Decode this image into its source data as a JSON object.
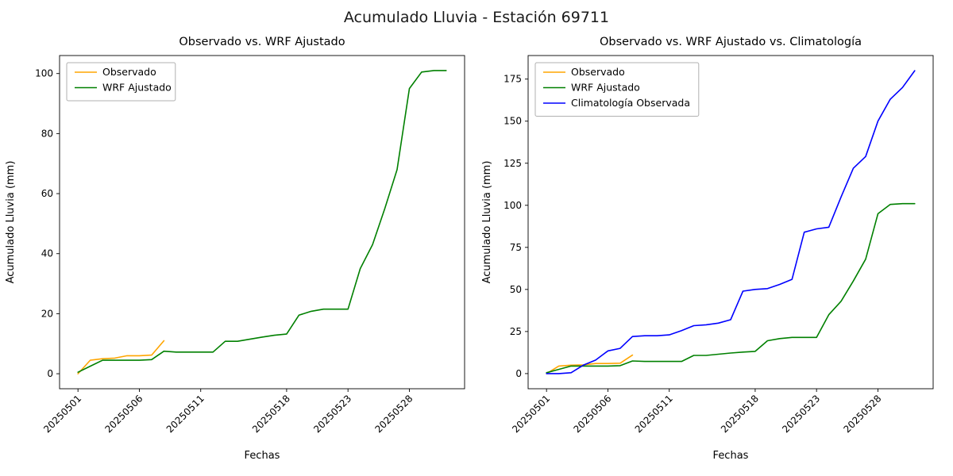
{
  "figure": {
    "title": "Acumulado Lluvia - Estación 69711",
    "background": "#ffffff"
  },
  "chart_data": [
    {
      "type": "line",
      "title": "Observado vs. WRF Ajustado",
      "xlabel": "Fechas",
      "ylabel": "Acumulado Lluvia (mm)",
      "grid": false,
      "legend_position": "upper left",
      "xlim": [
        -1.5,
        31.5
      ],
      "ylim": [
        -5,
        106
      ],
      "yticks": [
        0,
        20,
        40,
        60,
        80,
        100
      ],
      "xticks": [
        {
          "index": 0,
          "label": "20250501"
        },
        {
          "index": 5,
          "label": "20250506"
        },
        {
          "index": 10,
          "label": "20250511"
        },
        {
          "index": 17,
          "label": "20250518"
        },
        {
          "index": 22,
          "label": "20250523"
        },
        {
          "index": 27,
          "label": "20250528"
        }
      ],
      "x": [
        "20250501",
        "20250502",
        "20250503",
        "20250504",
        "20250505",
        "20250506",
        "20250507",
        "20250508",
        "20250509",
        "20250510",
        "20250511",
        "20250512",
        "20250513",
        "20250514",
        "20250515",
        "20250516",
        "20250517",
        "20250518",
        "20250519",
        "20250520",
        "20250521",
        "20250522",
        "20250523",
        "20250524",
        "20250525",
        "20250526",
        "20250527",
        "20250528",
        "20250529",
        "20250530",
        "20250531"
      ],
      "series": [
        {
          "name": "Observado",
          "color": "#ffa500",
          "values": [
            0,
            4.5,
            5,
            5.2,
            6,
            6,
            6.2,
            11
          ]
        },
        {
          "name": "WRF Ajustado",
          "color": "#008000",
          "values": [
            0.5,
            2.5,
            4.5,
            4.5,
            4.5,
            4.5,
            4.7,
            7.5,
            7.2,
            7.2,
            7.2,
            7.2,
            10.8,
            10.8,
            11.5,
            12.2,
            12.8,
            13.2,
            19.5,
            20.8,
            21.5,
            21.5,
            21.5,
            35,
            43,
            55,
            68,
            95,
            100.5,
            101,
            101
          ]
        }
      ]
    },
    {
      "type": "line",
      "title": "Observado vs. WRF Ajustado vs. Climatología",
      "xlabel": "Fechas",
      "ylabel": "Acumulado Lluvia (mm)",
      "grid": false,
      "legend_position": "upper left",
      "xlim": [
        -1.5,
        31.5
      ],
      "ylim": [
        -9,
        189
      ],
      "yticks": [
        0,
        25,
        50,
        75,
        100,
        125,
        150,
        175
      ],
      "xticks": [
        {
          "index": 0,
          "label": "20250501"
        },
        {
          "index": 5,
          "label": "20250506"
        },
        {
          "index": 10,
          "label": "20250511"
        },
        {
          "index": 17,
          "label": "20250518"
        },
        {
          "index": 22,
          "label": "20250523"
        },
        {
          "index": 27,
          "label": "20250528"
        }
      ],
      "x": [
        "20250501",
        "20250502",
        "20250503",
        "20250504",
        "20250505",
        "20250506",
        "20250507",
        "20250508",
        "20250509",
        "20250510",
        "20250511",
        "20250512",
        "20250513",
        "20250514",
        "20250515",
        "20250516",
        "20250517",
        "20250518",
        "20250519",
        "20250520",
        "20250521",
        "20250522",
        "20250523",
        "20250524",
        "20250525",
        "20250526",
        "20250527",
        "20250528",
        "20250529",
        "20250530",
        "20250531"
      ],
      "series": [
        {
          "name": "Observado",
          "color": "#ffa500",
          "values": [
            0,
            4.5,
            5,
            5.2,
            6,
            6,
            6.2,
            11
          ]
        },
        {
          "name": "WRF Ajustado",
          "color": "#008000",
          "values": [
            0.5,
            2.5,
            4.5,
            4.5,
            4.5,
            4.5,
            4.7,
            7.5,
            7.2,
            7.2,
            7.2,
            7.2,
            10.8,
            10.8,
            11.5,
            12.2,
            12.8,
            13.2,
            19.5,
            20.8,
            21.5,
            21.5,
            21.5,
            35,
            43,
            55,
            68,
            95,
            100.5,
            101,
            101
          ]
        },
        {
          "name": "Climatología Observada",
          "color": "#0000ff",
          "values": [
            0,
            0,
            0.5,
            5,
            8,
            13.5,
            15,
            22,
            22.5,
            22.5,
            23,
            25.5,
            28.5,
            29,
            30,
            32,
            49,
            50,
            50.5,
            53,
            56,
            84,
            86,
            87,
            105,
            122,
            129,
            150,
            163,
            170,
            180
          ]
        }
      ]
    }
  ]
}
